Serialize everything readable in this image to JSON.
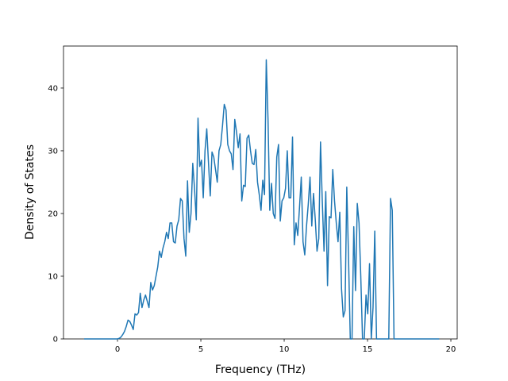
{
  "chart_data": {
    "type": "line",
    "x_label": "Frequency (THz)",
    "y_label": "Density of States",
    "x": [
      -2.0,
      0,
      0.105,
      0.21,
      0.315,
      0.42,
      0.525,
      0.63,
      0.735,
      0.84,
      0.945,
      1.05,
      1.155,
      1.26,
      1.365,
      1.47,
      1.575,
      1.68,
      1.785,
      1.89,
      1.995,
      2.1,
      2.205,
      2.31,
      2.415,
      2.52,
      2.625,
      2.73,
      2.835,
      2.94,
      3.045,
      3.15,
      3.255,
      3.36,
      3.465,
      3.57,
      3.675,
      3.78,
      3.885,
      3.99,
      4.095,
      4.2,
      4.305,
      4.41,
      4.515,
      4.62,
      4.725,
      4.83,
      4.935,
      5.04,
      5.145,
      5.25,
      5.355,
      5.46,
      5.565,
      5.67,
      5.775,
      5.88,
      5.985,
      6.09,
      6.195,
      6.3,
      6.405,
      6.51,
      6.615,
      6.72,
      6.825,
      6.93,
      7.035,
      7.14,
      7.245,
      7.35,
      7.455,
      7.56,
      7.665,
      7.77,
      7.875,
      7.98,
      8.085,
      8.19,
      8.295,
      8.4,
      8.505,
      8.61,
      8.715,
      8.82,
      8.925,
      9.03,
      9.135,
      9.24,
      9.345,
      9.45,
      9.555,
      9.66,
      9.765,
      9.87,
      9.975,
      10.08,
      10.185,
      10.29,
      10.395,
      10.5,
      10.605,
      10.71,
      10.815,
      10.92,
      11.025,
      11.13,
      11.235,
      11.34,
      11.445,
      11.55,
      11.655,
      11.76,
      11.865,
      11.97,
      12.075,
      12.18,
      12.285,
      12.39,
      12.495,
      12.6,
      12.705,
      12.81,
      12.915,
      13.02,
      13.125,
      13.23,
      13.335,
      13.44,
      13.545,
      13.65,
      13.755,
      13.86,
      13.965,
      14.07,
      14.175,
      14.28,
      14.385,
      14.49,
      14.595,
      14.7,
      14.805,
      14.91,
      15.015,
      15.12,
      15.225,
      15.33,
      15.435,
      15.54,
      15.645,
      15.75,
      15.855,
      15.96,
      16.065,
      16.17,
      16.275,
      16.38,
      16.485,
      16.59,
      19.3
    ],
    "series": [
      {
        "color": "#1f77b4",
        "values": [
          0,
          0,
          0.1,
          0.3,
          0.7,
          1.2,
          2.0,
          3.0,
          2.8,
          2.2,
          1.5,
          4.0,
          3.8,
          4.2,
          7.3,
          5.0,
          6.2,
          7.0,
          6.0,
          5.0,
          9.0,
          7.8,
          8.5,
          10.0,
          11.5,
          14.0,
          13.0,
          14.5,
          15.5,
          17.0,
          16.0,
          18.5,
          18.5,
          15.5,
          15.3,
          18.0,
          19.0,
          22.4,
          22.0,
          16.0,
          13.2,
          25.2,
          17.0,
          20.0,
          28.0,
          24.0,
          19.0,
          35.2,
          27.5,
          28.5,
          22.5,
          30.0,
          33.5,
          28.0,
          22.8,
          29.8,
          29.0,
          27.0,
          25.0,
          30.0,
          31.0,
          34.0,
          37.4,
          36.5,
          31.0,
          30.0,
          29.5,
          27.0,
          35.0,
          33.0,
          30.5,
          32.7,
          22.0,
          24.5,
          24.3,
          32.0,
          32.5,
          30.0,
          28.0,
          27.8,
          30.2,
          25.0,
          23.0,
          20.5,
          25.3,
          23.0,
          44.5,
          35.0,
          20.5,
          24.8,
          20.0,
          19.2,
          29.0,
          31.0,
          18.8,
          22.0,
          22.5,
          24.0,
          30.0,
          22.5,
          22.5,
          32.2,
          15.0,
          18.5,
          16.5,
          21.0,
          25.8,
          15.5,
          13.4,
          18.0,
          21.5,
          25.8,
          18.0,
          23.2,
          19.0,
          14.0,
          16.0,
          31.4,
          22.0,
          14.0,
          23.5,
          8.5,
          19.5,
          19.3,
          27.0,
          22.0,
          18.5,
          15.5,
          20.2,
          8.0,
          3.5,
          4.5,
          24.2,
          13.0,
          0,
          0,
          17.9,
          7.7,
          21.6,
          18.5,
          10.0,
          0,
          0,
          7.0,
          4.0,
          12.0,
          0,
          5.0,
          17.2,
          0,
          0,
          0,
          0,
          0,
          0,
          0,
          0,
          22.4,
          20.5,
          0,
          0
        ]
      }
    ],
    "xlim": [
      -3.24,
      20.38
    ],
    "ylim": [
      0,
      46.7
    ],
    "xticks": [
      0,
      5,
      10,
      15,
      20
    ],
    "yticks": [
      0,
      10,
      20,
      30,
      40
    ]
  }
}
